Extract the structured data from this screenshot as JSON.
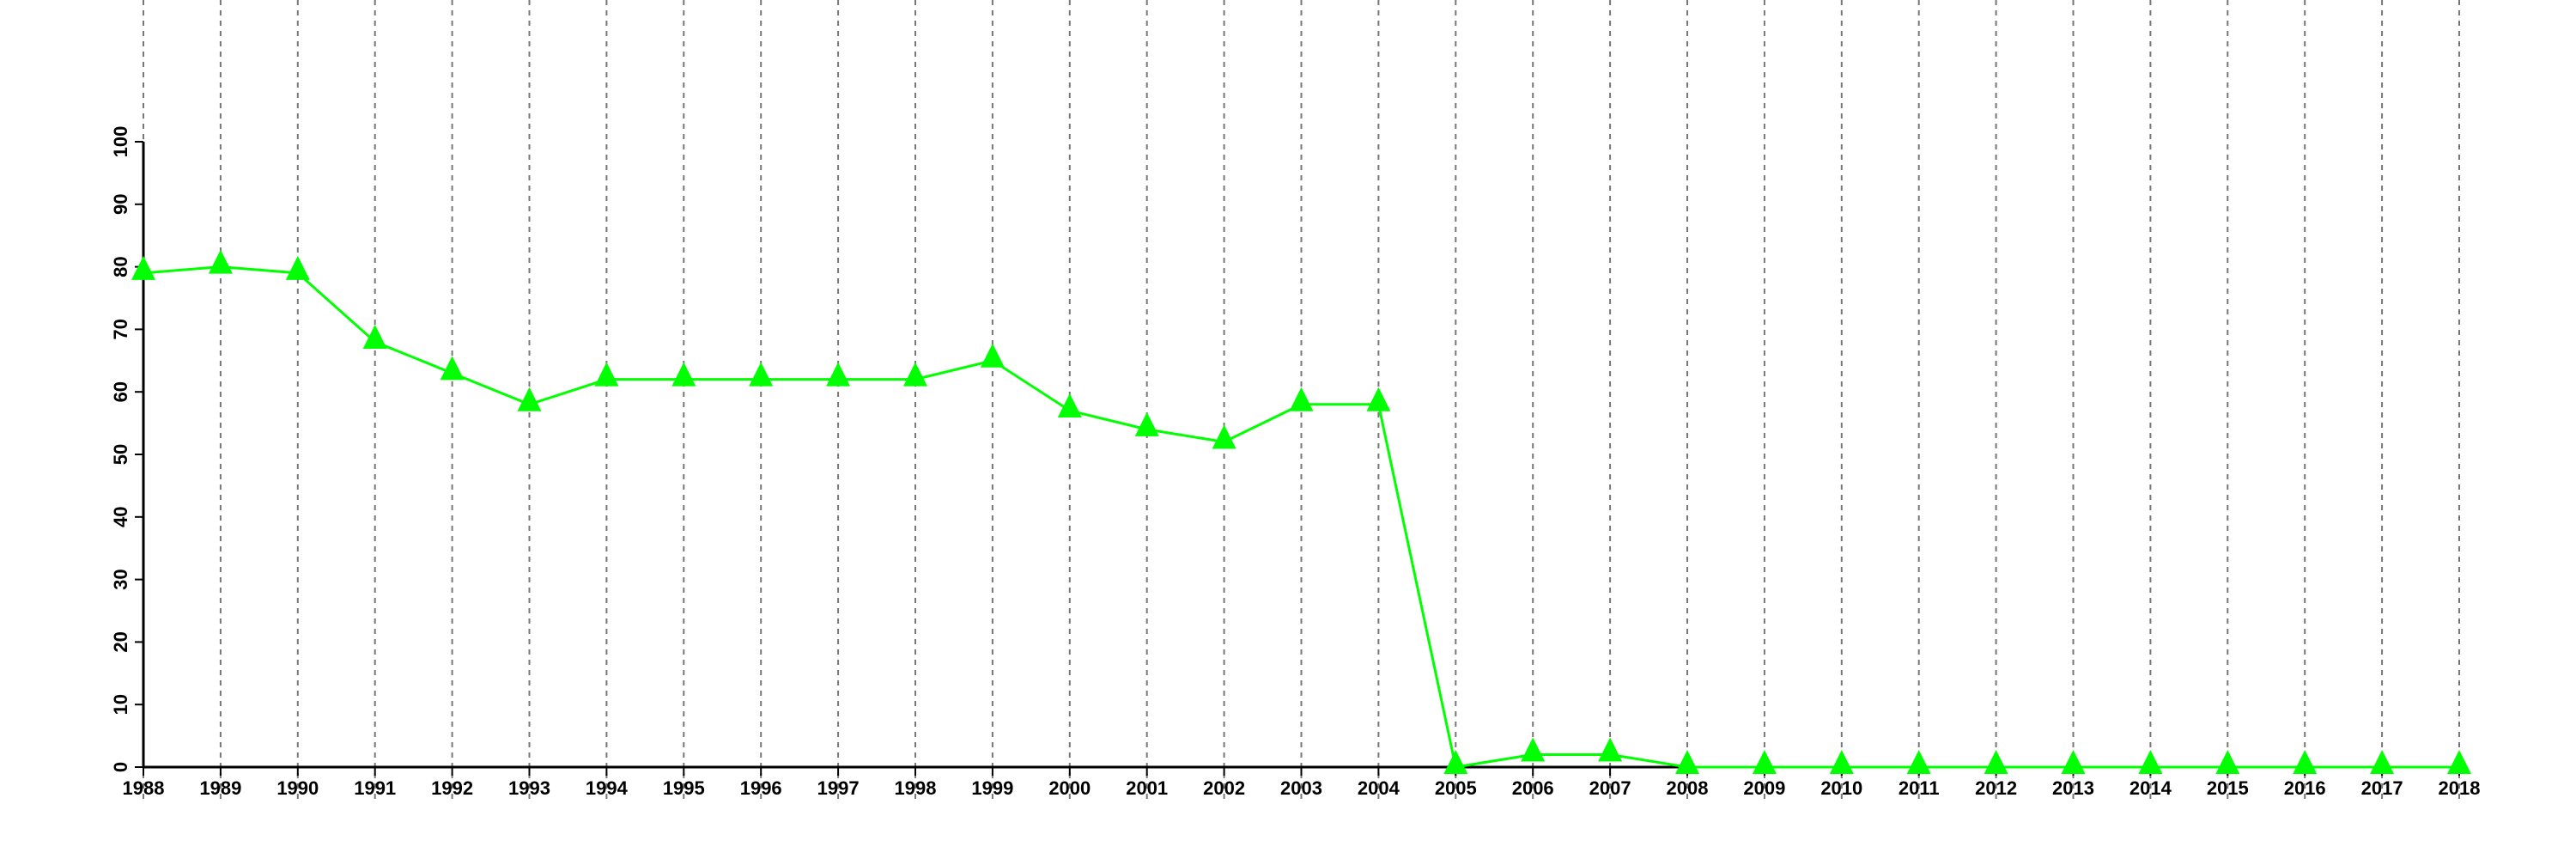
{
  "chart_data": {
    "type": "line",
    "title": "",
    "xlabel": "",
    "ylabel": "",
    "x": [
      1988,
      1989,
      1990,
      1991,
      1992,
      1993,
      1994,
      1995,
      1996,
      1997,
      1998,
      1999,
      2000,
      2001,
      2002,
      2003,
      2004,
      2005,
      2006,
      2007,
      2008,
      2009,
      2010,
      2011,
      2012,
      2013,
      2014,
      2015,
      2016,
      2017,
      2018
    ],
    "series": [
      {
        "values": [
          79,
          80,
          79,
          68,
          63,
          58,
          62,
          62,
          62,
          62,
          62,
          65,
          57,
          54,
          52,
          58,
          58,
          0,
          2,
          2,
          0,
          0,
          0,
          0,
          0,
          0,
          0,
          0,
          0,
          0,
          0
        ],
        "color": "#00ff00",
        "marker": "triangle"
      }
    ],
    "ylim": [
      0,
      100
    ],
    "yticks": [
      0,
      10,
      20,
      30,
      40,
      50,
      60,
      70,
      80,
      90,
      100
    ],
    "xlim": [
      1988,
      2018
    ],
    "grid": "vertical dashed",
    "legend": "none"
  }
}
